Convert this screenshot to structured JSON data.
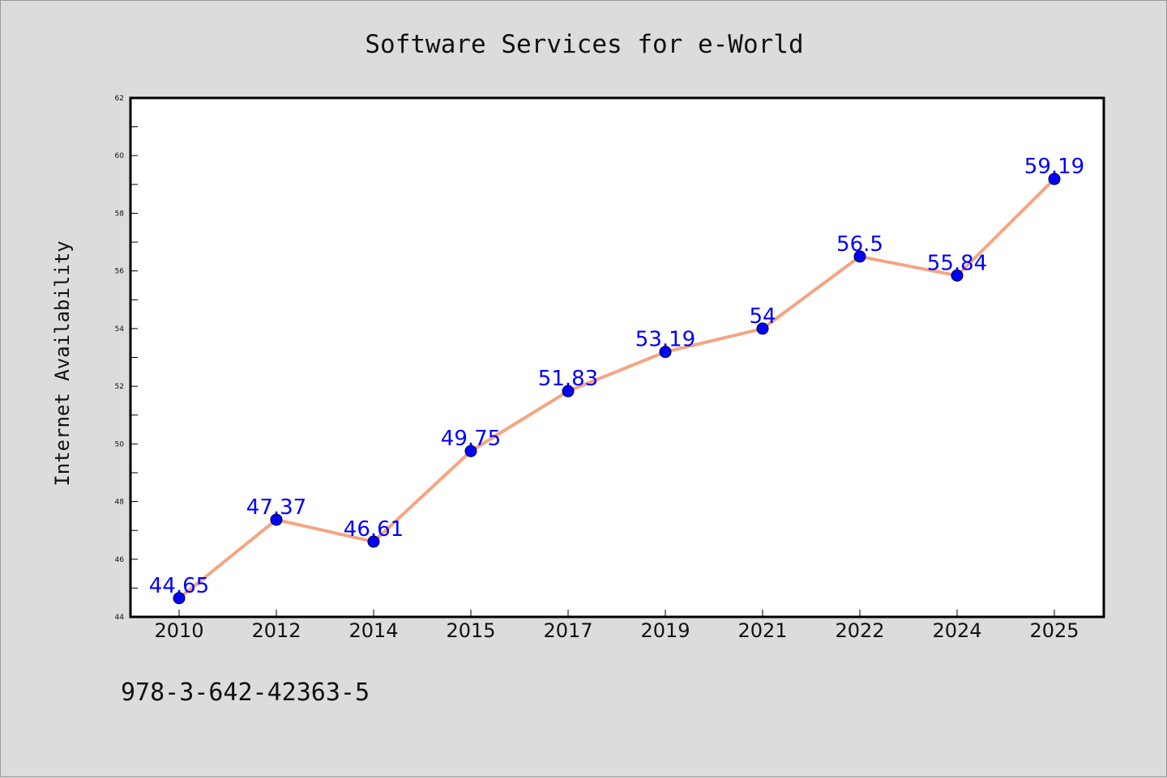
{
  "chart_data": {
    "type": "line",
    "title": "Software Services for e-World",
    "xlabel": "",
    "ylabel": "Internet Availability",
    "categories": [
      "2010",
      "2012",
      "2014",
      "2015",
      "2017",
      "2019",
      "2021",
      "2022",
      "2024",
      "2025"
    ],
    "series": [
      {
        "values": [
          44.65,
          47.37,
          46.61,
          49.75,
          51.83,
          53.19,
          54,
          56.5,
          55.84,
          59.19
        ],
        "line_color": "#f4a582",
        "marker_color": "#0000ff"
      }
    ],
    "data_labels": [
      "44.65",
      "47.37",
      "46.61",
      "49.75",
      "51.83",
      "53.19",
      "54",
      "56.5",
      "55.84",
      "59.19"
    ],
    "ylim": [
      44,
      62
    ],
    "yticks": [
      "44",
      "46",
      "48",
      "50",
      "52",
      "54",
      "56",
      "58",
      "60",
      "62"
    ],
    "grid": false,
    "legend": "none"
  },
  "footnote": "978-3-642-42363-5",
  "colors": {
    "background": "#dcdcdc",
    "plot_background": "#ffffff",
    "line": "#f4a582",
    "marker": "#0000ff",
    "data_label": "#0000ff"
  }
}
